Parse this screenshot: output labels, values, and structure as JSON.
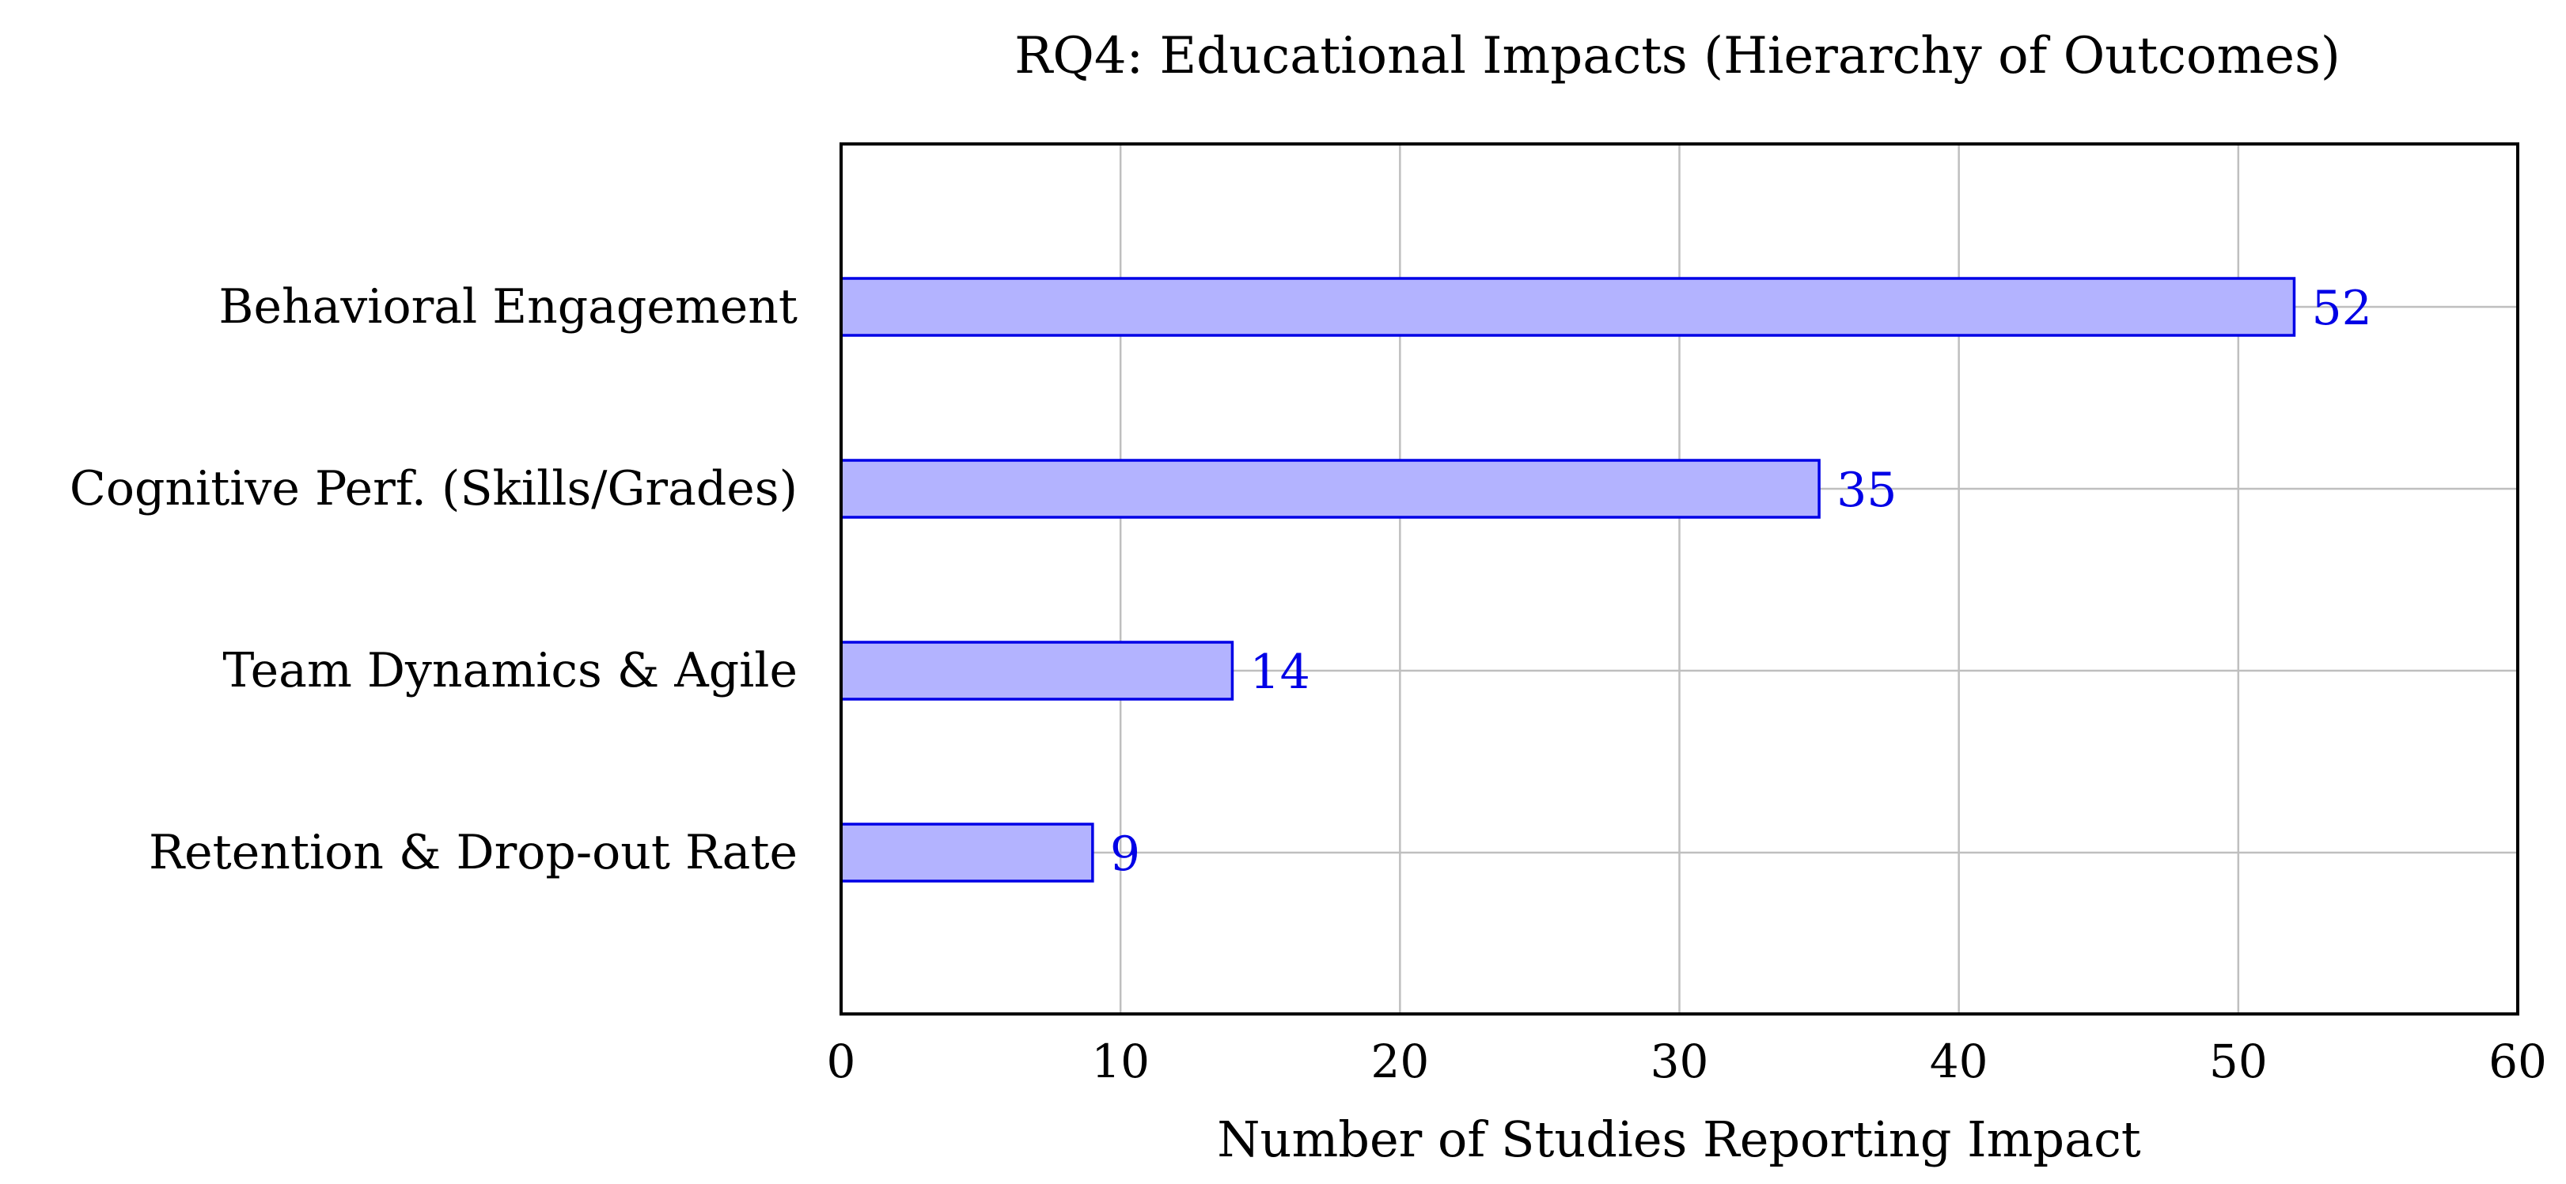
{
  "chart_data": {
    "type": "bar",
    "orientation": "horizontal",
    "title": "RQ4: Educational Impacts (Hierarchy of Outcomes)",
    "xlabel": "Number of Studies Reporting Impact",
    "ylabel": "",
    "categories": [
      "Behavioral Engagement",
      "Cognitive Perf. (Skills/Grades)",
      "Team Dynamics & Agile",
      "Retention & Drop-out Rate"
    ],
    "values": [
      52,
      35,
      14,
      9
    ],
    "xlim": [
      0,
      60
    ],
    "xticks": [
      "0",
      "10",
      "20",
      "30",
      "40",
      "50",
      "60"
    ],
    "grid": true,
    "colors": {
      "bar_fill": "#b3b3ff",
      "bar_stroke": "#0000e6",
      "value_label": "#0000e6",
      "grid": "#bfbfbf",
      "axis": "#000000"
    }
  }
}
